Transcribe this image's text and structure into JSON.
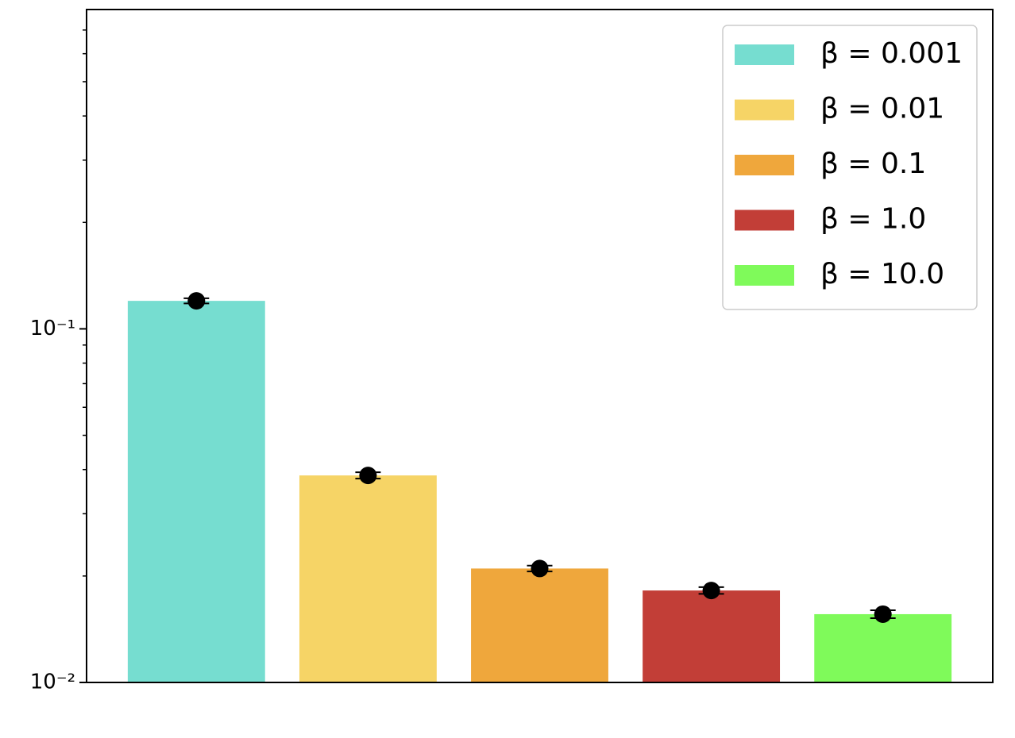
{
  "chart_data": {
    "type": "bar",
    "categories": [
      null
    ],
    "series": [
      {
        "name": "β = 0.001",
        "color": "#76ddd0",
        "values": [
          0.12
        ],
        "errors": [
          0.002
        ]
      },
      {
        "name": "β = 0.01",
        "color": "#f6d466",
        "values": [
          0.0385
        ],
        "errors": [
          0.0008
        ]
      },
      {
        "name": "β = 0.1",
        "color": "#efa73c",
        "values": [
          0.021
        ],
        "errors": [
          0.0004
        ]
      },
      {
        "name": "β = 1.0",
        "color": "#c23e37",
        "values": [
          0.0182
        ],
        "errors": [
          0.0004
        ]
      },
      {
        "name": "β = 10.0",
        "color": "#7ffa5a",
        "values": [
          0.0156
        ],
        "errors": [
          0.0004
        ]
      }
    ],
    "ylim": [
      0.01,
      0.8
    ],
    "log_y": true,
    "yticks": [
      {
        "value": 0.01,
        "label": "10⁻²"
      },
      {
        "value": 0.1,
        "label": "10⁻¹"
      }
    ],
    "yminorticks": [
      0.02,
      0.03,
      0.04,
      0.05,
      0.06,
      0.07,
      0.08,
      0.09,
      0.2,
      0.3,
      0.4,
      0.5,
      0.6,
      0.7
    ],
    "legend": "upper right"
  }
}
